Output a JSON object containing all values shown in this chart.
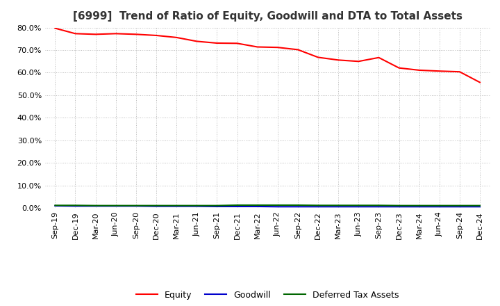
{
  "title": "[6999]  Trend of Ratio of Equity, Goodwill and DTA to Total Assets",
  "x_labels": [
    "Sep-19",
    "Dec-19",
    "Mar-20",
    "Jun-20",
    "Sep-20",
    "Dec-20",
    "Mar-21",
    "Jun-21",
    "Sep-21",
    "Dec-21",
    "Mar-22",
    "Jun-22",
    "Sep-22",
    "Dec-22",
    "Mar-23",
    "Jun-23",
    "Sep-23",
    "Dec-23",
    "Mar-24",
    "Jun-24",
    "Sep-24",
    "Dec-24"
  ],
  "equity": [
    0.797,
    0.773,
    0.77,
    0.773,
    0.77,
    0.765,
    0.756,
    0.739,
    0.731,
    0.73,
    0.714,
    0.712,
    0.702,
    0.668,
    0.656,
    0.65,
    0.667,
    0.621,
    0.611,
    0.607,
    0.604,
    0.557
  ],
  "goodwill": [
    0.01,
    0.009,
    0.009,
    0.009,
    0.009,
    0.008,
    0.008,
    0.008,
    0.007,
    0.007,
    0.007,
    0.006,
    0.006,
    0.006,
    0.006,
    0.006,
    0.006,
    0.006,
    0.006,
    0.006,
    0.006,
    0.006
  ],
  "dta": [
    0.012,
    0.012,
    0.011,
    0.011,
    0.011,
    0.011,
    0.011,
    0.011,
    0.011,
    0.013,
    0.013,
    0.013,
    0.013,
    0.012,
    0.012,
    0.012,
    0.012,
    0.011,
    0.011,
    0.011,
    0.011,
    0.011
  ],
  "equity_color": "#ff0000",
  "goodwill_color": "#0000cc",
  "dta_color": "#006600",
  "ylim": [
    0.0,
    0.8
  ],
  "yticks": [
    0.0,
    0.1,
    0.2,
    0.3,
    0.4,
    0.5,
    0.6,
    0.7,
    0.8
  ],
  "background_color": "#ffffff",
  "plot_bg_color": "#ffffff",
  "grid_color": "#bbbbbb",
  "title_fontsize": 11,
  "tick_fontsize": 8,
  "legend_labels": [
    "Equity",
    "Goodwill",
    "Deferred Tax Assets"
  ]
}
